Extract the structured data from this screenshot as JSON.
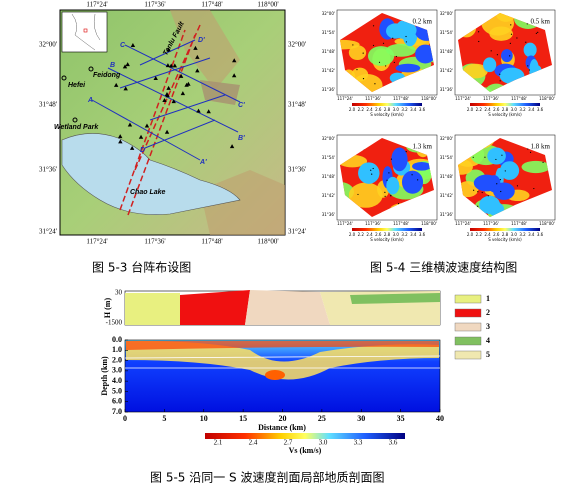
{
  "figure_5_3": {
    "caption": "图 5-3 台阵布设图",
    "lon_ticks": [
      "117°24'",
      "117°36'",
      "117°48'",
      "118°00'"
    ],
    "lat_ticks": [
      "32°00'",
      "31°48'",
      "31°36'",
      "31°24'"
    ],
    "places": [
      "Hefei",
      "Feidong",
      "Wetland Park",
      "Chao Lake",
      "Tanlu Fault"
    ],
    "profile_labels": [
      "A",
      "A'",
      "B",
      "B'",
      "C",
      "C'",
      "D",
      "D'"
    ]
  },
  "figure_5_4": {
    "caption": "图 5-4 三维横波速度结构图",
    "depths": [
      "0.2 km",
      "0.5 km",
      "1.3 km",
      "1.8 km"
    ],
    "lon_ticks": [
      "117°24'",
      "117°36'",
      "117°48'",
      "118°00'"
    ],
    "lat_ticks": [
      "32°00'",
      "31°54'",
      "31°48'",
      "31°42'",
      "31°36'"
    ],
    "colorbar_ticks": [
      "2.0",
      "2.2",
      "2.4",
      "2.6",
      "2.8",
      "3.0",
      "3.2",
      "3.4",
      "3.6"
    ],
    "colorbar_label": "S velocity (km/s)"
  },
  "figure_5_5": {
    "caption": "图 5-5 沿同一 S 波速度剖面局部地质剖面图",
    "h_label": "H (m)",
    "h_ticks": [
      "30",
      "-1500"
    ],
    "legend": [
      "1",
      "2",
      "3",
      "4",
      "5"
    ],
    "depth_label": "Depth (km)",
    "depth_ticks": [
      "0.0",
      "1.0",
      "2.0",
      "3.0",
      "4.0",
      "5.0",
      "6.0",
      "7.0"
    ],
    "distance_ticks": [
      "0",
      "5",
      "10",
      "15",
      "20",
      "25",
      "30",
      "35",
      "40"
    ],
    "distance_label": "Distance (km)",
    "vs_ticks": [
      "2.1",
      "2.4",
      "2.7",
      "3.0",
      "3.3",
      "3.6"
    ],
    "vs_label": "Vs (km/s)"
  }
}
